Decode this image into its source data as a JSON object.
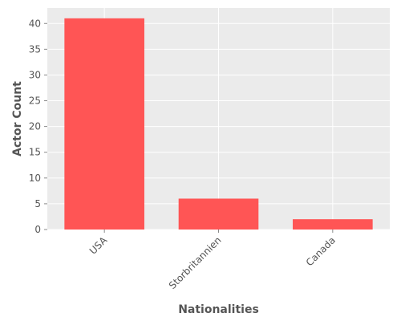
{
  "chart_data": {
    "type": "bar",
    "categories": [
      "USA",
      "Storbritannien",
      "Canada"
    ],
    "values": [
      41,
      6,
      2
    ],
    "xlabel": "Nationalities",
    "ylabel": "Actor Count",
    "ylim": [
      0,
      43
    ],
    "yticks": [
      0,
      5,
      10,
      15,
      20,
      25,
      30,
      35,
      40
    ],
    "grid": true,
    "legend": "none",
    "colors": {
      "bar": "#ff5555",
      "plot_background": "#ebebeb",
      "grid": "#ffffff",
      "text": "#555555"
    }
  }
}
